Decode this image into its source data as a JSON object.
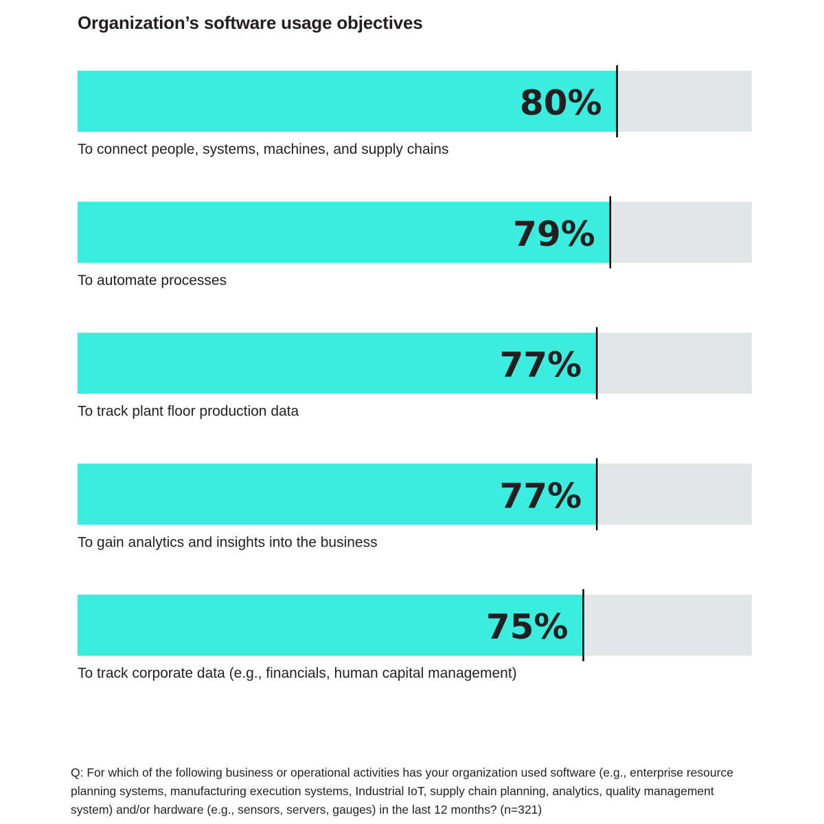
{
  "title": "Organization’s software usage objectives",
  "footnote": "Q: For which of the following business or operational activities has your organization used software (e.g., enterprise resource planning systems, manufacturing execution systems, Industrial IoT, supply chain planning, analytics, quality management system) and/or hardware (e.g., sensors, servers, gauges) in the last 12 months? (n=321)",
  "colors": {
    "bar": "#3beddf",
    "track": "#e3e6e6",
    "marker": "#000000"
  },
  "chart_data": {
    "type": "bar",
    "orientation": "horizontal",
    "title": "Organization’s software usage objectives",
    "xlim": [
      0,
      100
    ],
    "grid": false,
    "categories": [
      "To connect people, systems, machines, and supply chains",
      "To automate processes",
      "To track plant floor production data",
      "To gain analytics and insights into the business",
      "To track corporate data (e.g., financials, human capital management)"
    ],
    "values": [
      80,
      79,
      77,
      77,
      75
    ],
    "value_labels": [
      "80%",
      "79%",
      "77%",
      "77%",
      "75%"
    ]
  }
}
